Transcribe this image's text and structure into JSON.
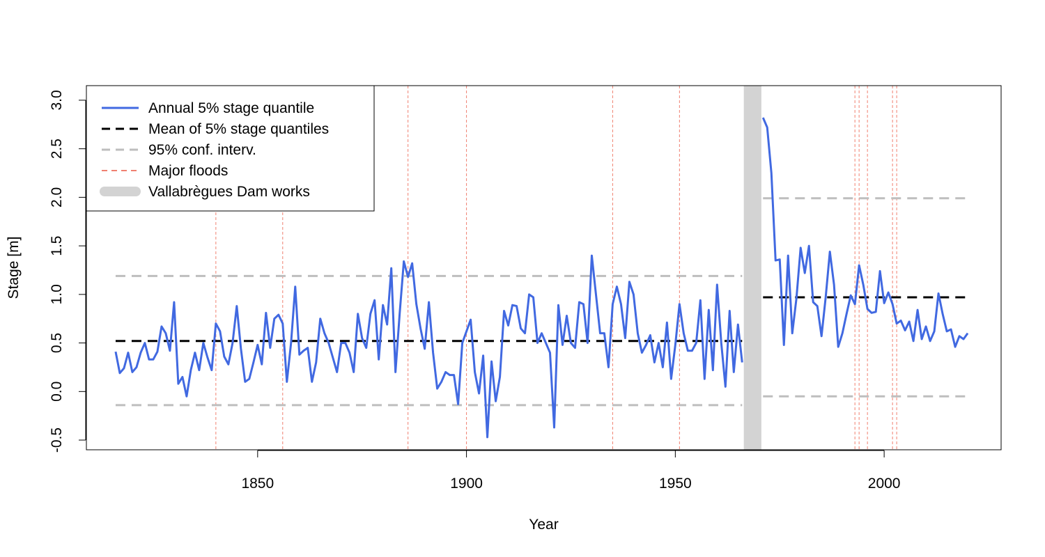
{
  "chart_data": {
    "type": "line",
    "title": "",
    "xlabel": "Year",
    "ylabel": "Stage [m]",
    "xlim": [
      1809,
      2028
    ],
    "ylim": [
      -0.6,
      3.15
    ],
    "x_ticks": [
      1850,
      1900,
      1950,
      2000
    ],
    "y_ticks": [
      -0.5,
      0.0,
      0.5,
      1.0,
      1.5,
      2.0,
      2.5,
      3.0
    ],
    "x_tick_labels": [
      "1850",
      "1900",
      "1950",
      "2000"
    ],
    "y_tick_labels": [
      "-0.5",
      "0.0",
      "0.5",
      "1.0",
      "1.5",
      "2.0",
      "2.5",
      "3.0"
    ],
    "grid": false,
    "legend_position": "top-left",
    "legend": [
      {
        "label": "Annual 5% stage quantile",
        "style": "solid",
        "color": "#4169E1"
      },
      {
        "label": "Mean of 5% stage quantiles",
        "style": "dashed",
        "color": "#000000"
      },
      {
        "label": "95% conf. interv.",
        "style": "dashed",
        "color": "#BEBEBE"
      },
      {
        "label": "Major floods",
        "style": "dashed",
        "color": "#F08070"
      },
      {
        "label": "Vallabrègues Dam works",
        "style": "band",
        "color": "#D3D3D3"
      }
    ],
    "series": [
      {
        "name": "Annual 5% stage quantile",
        "color": "#4169E1",
        "segments": [
          {
            "x": [
              1816,
              1817,
              1818,
              1819,
              1820,
              1821,
              1822,
              1823,
              1824,
              1825,
              1826,
              1827,
              1828,
              1829,
              1830,
              1831,
              1832,
              1833,
              1834,
              1835,
              1836,
              1837,
              1838,
              1839,
              1840,
              1841,
              1842,
              1843,
              1844,
              1845,
              1846,
              1847,
              1848,
              1849,
              1850,
              1851,
              1852,
              1853,
              1854,
              1855,
              1856,
              1857,
              1858,
              1859,
              1860,
              1861,
              1862,
              1863,
              1864,
              1865,
              1866,
              1867,
              1868,
              1869,
              1870,
              1871,
              1872,
              1873,
              1874,
              1875,
              1876,
              1877,
              1878,
              1879,
              1880,
              1881,
              1882,
              1883,
              1884,
              1885,
              1886,
              1887,
              1888,
              1889,
              1890,
              1891,
              1892,
              1893,
              1894,
              1895,
              1896,
              1897,
              1898,
              1899,
              1900,
              1901,
              1902,
              1903,
              1904,
              1905,
              1906,
              1907,
              1908,
              1909,
              1910,
              1911,
              1912,
              1913,
              1914,
              1915,
              1916,
              1917,
              1918,
              1919,
              1920,
              1921,
              1922,
              1923,
              1924,
              1925,
              1926,
              1927,
              1928,
              1929,
              1930,
              1931,
              1932,
              1933,
              1934,
              1935,
              1936,
              1937,
              1938,
              1939,
              1940,
              1941,
              1942,
              1943,
              1944,
              1945,
              1946,
              1947,
              1948,
              1949,
              1950,
              1951,
              1952,
              1953,
              1954,
              1955,
              1956,
              1957,
              1958,
              1959,
              1960,
              1961,
              1962,
              1963,
              1964,
              1965,
              1966
            ],
            "y": [
              0.41,
              0.19,
              0.24,
              0.4,
              0.2,
              0.25,
              0.4,
              0.5,
              0.33,
              0.33,
              0.41,
              0.67,
              0.6,
              0.42,
              0.92,
              0.08,
              0.15,
              -0.05,
              0.22,
              0.4,
              0.22,
              0.5,
              0.35,
              0.22,
              0.7,
              0.62,
              0.36,
              0.28,
              0.5,
              0.88,
              0.44,
              0.1,
              0.13,
              0.3,
              0.48,
              0.28,
              0.81,
              0.45,
              0.75,
              0.79,
              0.7,
              0.1,
              0.5,
              1.08,
              0.38,
              0.42,
              0.45,
              0.1,
              0.3,
              0.75,
              0.6,
              0.5,
              0.35,
              0.2,
              0.5,
              0.5,
              0.4,
              0.2,
              0.8,
              0.55,
              0.45,
              0.8,
              0.94,
              0.33,
              0.89,
              0.69,
              1.27,
              0.2,
              0.8,
              1.34,
              1.18,
              1.32,
              0.9,
              0.65,
              0.44,
              0.92,
              0.4,
              0.03,
              0.1,
              0.2,
              0.17,
              0.17,
              -0.13,
              0.5,
              0.62,
              0.74,
              0.2,
              -0.02,
              0.37,
              -0.47,
              0.31,
              -0.1,
              0.15,
              0.83,
              0.68,
              0.89,
              0.88,
              0.65,
              0.6,
              1.0,
              0.97,
              0.5,
              0.6,
              0.5,
              0.4,
              -0.37,
              0.89,
              0.48,
              0.78,
              0.5,
              0.45,
              0.92,
              0.9,
              0.5,
              1.4,
              1.0,
              0.6,
              0.6,
              0.25,
              0.9,
              1.08,
              0.9,
              0.55,
              1.13,
              1.0,
              0.6,
              0.4,
              0.48,
              0.58,
              0.3,
              0.5,
              0.25,
              0.71,
              0.13,
              0.48,
              0.9,
              0.6,
              0.42,
              0.42,
              0.5,
              0.94,
              0.13,
              0.84,
              0.22,
              1.1,
              0.5,
              0.05,
              0.83,
              0.2,
              0.69,
              0.3
            ]
          },
          {
            "x": [
              1971,
              1972,
              1973,
              1974,
              1975,
              1976,
              1977,
              1978,
              1979,
              1980,
              1981,
              1982,
              1983,
              1984,
              1985,
              1986,
              1987,
              1988,
              1989,
              1990,
              1991,
              1992,
              1993,
              1994,
              1995,
              1996,
              1997,
              1998,
              1999,
              2000,
              2001,
              2002,
              2003,
              2004,
              2005,
              2006,
              2007,
              2008,
              2009,
              2010,
              2011,
              2012,
              2013,
              2014,
              2015,
              2016,
              2017,
              2018,
              2019,
              2020
            ],
            "y": [
              2.82,
              2.72,
              2.25,
              1.35,
              1.36,
              0.48,
              1.4,
              0.6,
              0.96,
              1.48,
              1.22,
              1.5,
              0.92,
              0.88,
              0.57,
              0.97,
              1.44,
              1.1,
              0.46,
              0.6,
              0.8,
              0.99,
              0.9,
              1.3,
              1.1,
              0.85,
              0.81,
              0.82,
              1.24,
              0.91,
              1.02,
              0.9,
              0.7,
              0.73,
              0.63,
              0.72,
              0.52,
              0.84,
              0.54,
              0.67,
              0.52,
              0.62,
              1.01,
              0.8,
              0.62,
              0.64,
              0.46,
              0.57,
              0.54,
              0.6
            ]
          }
        ]
      }
    ],
    "mean_lines": [
      {
        "name": "Mean of 5% stage quantiles",
        "x_range": [
          1816,
          1966
        ],
        "y": 0.52
      },
      {
        "name": "Mean of 5% stage quantiles",
        "x_range": [
          1971,
          2020
        ],
        "y": 0.97
      }
    ],
    "confidence_intervals": [
      {
        "name": "95% conf. interv.",
        "x_range": [
          1816,
          1966
        ],
        "lower": -0.14,
        "upper": 1.19
      },
      {
        "name": "95% conf. interv.",
        "x_range": [
          1971,
          2020
        ],
        "lower": -0.05,
        "upper": 1.99
      }
    ],
    "major_floods": [
      1840,
      1856,
      1886,
      1900,
      1935,
      1951,
      1993,
      1994,
      1996,
      2002,
      2003
    ],
    "dam_works": {
      "name": "Vallabrègues Dam works",
      "x_range": [
        1966.4,
        1970.6
      ]
    }
  }
}
